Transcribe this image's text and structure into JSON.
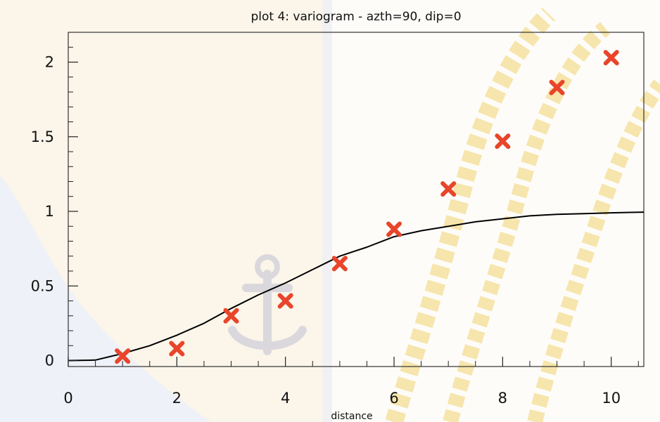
{
  "chart_data": {
    "type": "scatter",
    "title": "plot 4:  variogram - azth=90, dip=0",
    "xlabel": "distance",
    "ylabel": "",
    "xlim": [
      0,
      10.6
    ],
    "ylim": [
      -0.04,
      2.2
    ],
    "x_ticks": [
      0,
      2,
      4,
      6,
      8,
      10
    ],
    "y_ticks": [
      0,
      0.5,
      1,
      1.5,
      2
    ],
    "x_tick_labels": [
      "0",
      "2",
      "4",
      "6",
      "8",
      "10"
    ],
    "y_tick_labels": [
      "0",
      "0.5",
      "1",
      "1.5",
      "2"
    ],
    "grid": false,
    "series": [
      {
        "type": "scatter",
        "marker": "x",
        "color": "#e8452a",
        "x": [
          1,
          2,
          3,
          4,
          5,
          6,
          7,
          8,
          9,
          10
        ],
        "y": [
          0.03,
          0.08,
          0.3,
          0.4,
          0.65,
          0.88,
          1.15,
          1.47,
          1.83,
          2.03
        ]
      },
      {
        "type": "line",
        "model": "gaussian",
        "sill": 1.0,
        "range": 4.6,
        "color": "#000000",
        "x": [
          0,
          0.5,
          1,
          1.5,
          2,
          2.5,
          3,
          3.5,
          4,
          4.5,
          5,
          5.5,
          6,
          6.5,
          7,
          7.5,
          8,
          8.5,
          9,
          9.5,
          10,
          10.6
        ],
        "y": [
          0,
          0.0035,
          0.047,
          0.1,
          0.17,
          0.25,
          0.349,
          0.44,
          0.52,
          0.61,
          0.7,
          0.76,
          0.83,
          0.87,
          0.9,
          0.93,
          0.95,
          0.97,
          0.98,
          0.985,
          0.99,
          0.995
        ]
      }
    ]
  }
}
